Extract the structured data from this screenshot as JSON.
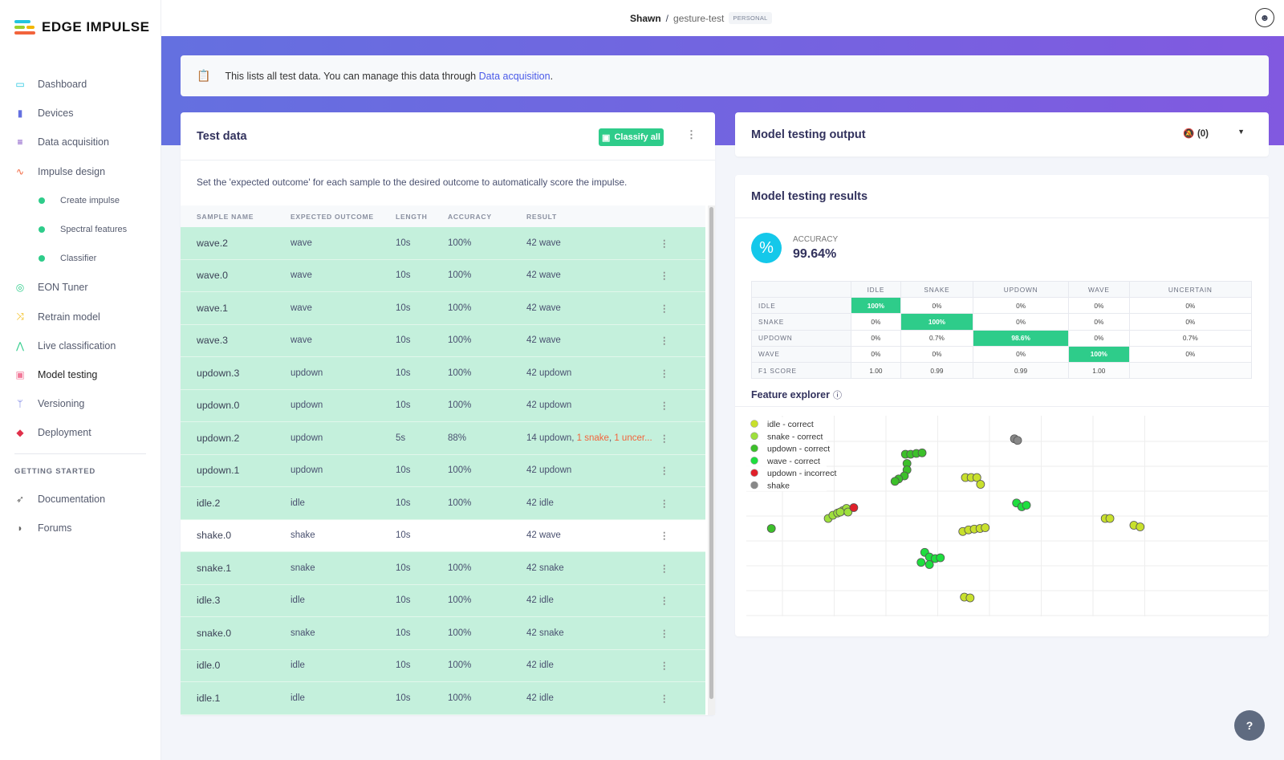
{
  "brand": {
    "name": "EDGE IMPULSE"
  },
  "sidebar": {
    "items": [
      {
        "label": "Dashboard",
        "icon": "monitor-icon",
        "color": "#22c5e0"
      },
      {
        "label": "Devices",
        "icon": "chip-icon",
        "color": "#6470e0"
      },
      {
        "label": "Data acquisition",
        "icon": "database-icon",
        "color": "#6a2fb8"
      },
      {
        "label": "Impulse design",
        "icon": "pulse-icon",
        "color": "#f2643c"
      },
      {
        "label": "Create impulse",
        "sub": true
      },
      {
        "label": "Spectral features",
        "sub": true
      },
      {
        "label": "Classifier",
        "sub": true
      },
      {
        "label": "EON Tuner",
        "icon": "compass-icon",
        "color": "#2ecc8a"
      },
      {
        "label": "Retrain model",
        "icon": "shuffle-icon",
        "color": "#f2b600"
      },
      {
        "label": "Live classification",
        "icon": "graph-icon",
        "color": "#2ecc8a"
      },
      {
        "label": "Model testing",
        "icon": "clipboard-icon",
        "color": "#f27a9a"
      },
      {
        "label": "Versioning",
        "icon": "branch-icon",
        "color": "#6470e0"
      },
      {
        "label": "Deployment",
        "icon": "box-icon",
        "color": "#e0304a"
      }
    ],
    "getting_started": "GETTING STARTED",
    "footer_items": [
      {
        "label": "Documentation",
        "icon": "rocket-icon"
      },
      {
        "label": "Forums",
        "icon": "chat-icon"
      }
    ]
  },
  "header": {
    "user": "Shawn",
    "sep": "/",
    "project": "gesture-test",
    "badge": "PERSONAL"
  },
  "info": {
    "text": "This lists all test data. You can manage this data through ",
    "link": "Data acquisition",
    "end": "."
  },
  "test_data": {
    "title": "Test data",
    "classify_label": "Classify all",
    "description": "Set the 'expected outcome' for each sample to the desired outcome to automatically score the impulse.",
    "columns": [
      "SAMPLE NAME",
      "EXPECTED OUTCOME",
      "LENGTH",
      "ACCURACY",
      "RESULT"
    ],
    "rows": [
      {
        "name": "wave.2",
        "expected": "wave",
        "length": "10s",
        "accuracy": "100%",
        "result": "42 wave"
      },
      {
        "name": "wave.0",
        "expected": "wave",
        "length": "10s",
        "accuracy": "100%",
        "result": "42 wave"
      },
      {
        "name": "wave.1",
        "expected": "wave",
        "length": "10s",
        "accuracy": "100%",
        "result": "42 wave"
      },
      {
        "name": "wave.3",
        "expected": "wave",
        "length": "10s",
        "accuracy": "100%",
        "result": "42 wave"
      },
      {
        "name": "updown.3",
        "expected": "updown",
        "length": "10s",
        "accuracy": "100%",
        "result": "42 updown"
      },
      {
        "name": "updown.0",
        "expected": "updown",
        "length": "10s",
        "accuracy": "100%",
        "result": "42 updown"
      },
      {
        "name": "updown.2",
        "expected": "updown",
        "length": "5s",
        "accuracy": "88%",
        "result": "14 updown, ",
        "result_err1": "1 snake",
        "result_sep": ", ",
        "result_err2": "1 uncer..."
      },
      {
        "name": "updown.1",
        "expected": "updown",
        "length": "10s",
        "accuracy": "100%",
        "result": "42 updown"
      },
      {
        "name": "idle.2",
        "expected": "idle",
        "length": "10s",
        "accuracy": "100%",
        "result": "42 idle"
      },
      {
        "name": "shake.0",
        "expected": "shake",
        "length": "10s",
        "accuracy": "",
        "result": "42 wave",
        "plain": true
      },
      {
        "name": "snake.1",
        "expected": "snake",
        "length": "10s",
        "accuracy": "100%",
        "result": "42 snake"
      },
      {
        "name": "idle.3",
        "expected": "idle",
        "length": "10s",
        "accuracy": "100%",
        "result": "42 idle"
      },
      {
        "name": "snake.0",
        "expected": "snake",
        "length": "10s",
        "accuracy": "100%",
        "result": "42 snake"
      },
      {
        "name": "idle.0",
        "expected": "idle",
        "length": "10s",
        "accuracy": "100%",
        "result": "42 idle"
      },
      {
        "name": "idle.1",
        "expected": "idle",
        "length": "10s",
        "accuracy": "100%",
        "result": "42 idle"
      }
    ]
  },
  "output": {
    "title": "Model testing output",
    "notifications": "(0)"
  },
  "results": {
    "title": "Model testing results",
    "accuracy_label": "ACCURACY",
    "accuracy_value": "99.64%",
    "matrix": {
      "cols": [
        "IDLE",
        "SNAKE",
        "UPDOWN",
        "WAVE",
        "UNCERTAIN"
      ],
      "rows": [
        {
          "label": "IDLE",
          "cells": [
            "100%",
            "0%",
            "0%",
            "0%",
            "0%"
          ],
          "hi": 0
        },
        {
          "label": "SNAKE",
          "cells": [
            "0%",
            "100%",
            "0%",
            "0%",
            "0%"
          ],
          "hi": 1
        },
        {
          "label": "UPDOWN",
          "cells": [
            "0%",
            "0.7%",
            "98.6%",
            "0%",
            "0.7%"
          ],
          "hi": 2
        },
        {
          "label": "WAVE",
          "cells": [
            "0%",
            "0%",
            "0%",
            "100%",
            "0%"
          ],
          "hi": 3
        },
        {
          "label": "F1 SCORE",
          "cells": [
            "1.00",
            "0.99",
            "0.99",
            "1.00",
            ""
          ],
          "hi": -1
        }
      ]
    },
    "feature_explorer_title": "Feature explorer"
  },
  "chart_data": {
    "type": "scatter",
    "title": "Feature explorer",
    "grid": true,
    "legend_position": "top-left",
    "xlim": [
      0,
      100
    ],
    "ylim": [
      0,
      100
    ],
    "series": [
      {
        "name": "idle - correct",
        "color": "#c8e02c",
        "points": [
          [
            42,
            69.2
          ],
          [
            43.1,
            69.2
          ],
          [
            44.2,
            69.2
          ],
          [
            44.9,
            65.8
          ],
          [
            41.5,
            42.3
          ],
          [
            42.6,
            43.1
          ],
          [
            43.7,
            43.5
          ],
          [
            44.8,
            43.8
          ],
          [
            45.8,
            44.2
          ],
          [
            41.8,
            9.6
          ],
          [
            42.9,
            9.2
          ],
          [
            68.8,
            48.8
          ],
          [
            69.7,
            48.8
          ],
          [
            74.3,
            45.4
          ],
          [
            75.5,
            44.6
          ]
        ]
      },
      {
        "name": "snake - correct",
        "color": "#9ee03c",
        "points": [
          [
            15.7,
            48.8
          ],
          [
            16.6,
            50.4
          ],
          [
            17.5,
            51.5
          ],
          [
            18.5,
            52.7
          ],
          [
            19.2,
            53.8
          ],
          [
            18,
            52
          ],
          [
            19.5,
            52
          ]
        ]
      },
      {
        "name": "updown - correct",
        "color": "#3cc02a",
        "points": [
          [
            30.5,
            80.8
          ],
          [
            31.5,
            80.8
          ],
          [
            32.6,
            81.2
          ],
          [
            33.7,
            81.5
          ],
          [
            30.8,
            76.2
          ],
          [
            30.8,
            73
          ],
          [
            30.3,
            70
          ],
          [
            29.2,
            68.5
          ],
          [
            28.5,
            67.3
          ],
          [
            4.8,
            43.8
          ]
        ]
      },
      {
        "name": "wave - correct",
        "color": "#1ede3e",
        "points": [
          [
            34.2,
            31.9
          ],
          [
            35.1,
            29.6
          ],
          [
            36.2,
            28.8
          ],
          [
            37.2,
            29.2
          ],
          [
            35.1,
            25.8
          ],
          [
            33.5,
            26.9
          ],
          [
            51.8,
            56.5
          ],
          [
            52.8,
            54.6
          ],
          [
            53.7,
            55.4
          ]
        ]
      },
      {
        "name": "updown - incorrect",
        "color": "#e0202a",
        "points": [
          [
            20.6,
            54.2
          ]
        ]
      },
      {
        "name": "shake",
        "color": "#888888",
        "points": [
          [
            51.4,
            88.5
          ],
          [
            52,
            87.7
          ]
        ]
      }
    ]
  }
}
